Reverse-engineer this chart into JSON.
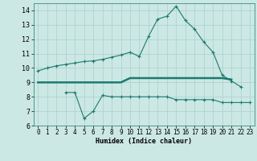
{
  "xlabel": "Humidex (Indice chaleur)",
  "x": [
    0,
    1,
    2,
    3,
    4,
    5,
    6,
    7,
    8,
    9,
    10,
    11,
    12,
    13,
    14,
    15,
    16,
    17,
    18,
    19,
    20,
    21,
    22,
    23
  ],
  "line1": [
    9.8,
    10.0,
    10.15,
    10.25,
    10.35,
    10.45,
    10.5,
    10.6,
    10.75,
    10.9,
    11.1,
    10.8,
    12.2,
    13.4,
    13.6,
    14.3,
    13.3,
    12.7,
    11.8,
    11.1,
    9.5,
    9.1,
    8.7,
    null
  ],
  "line2": [
    9.0,
    9.0,
    9.0,
    9.0,
    9.0,
    9.0,
    9.0,
    9.0,
    9.0,
    9.0,
    9.3,
    9.3,
    9.3,
    9.3,
    9.3,
    9.3,
    9.3,
    9.3,
    9.3,
    9.3,
    9.3,
    9.2,
    null,
    null
  ],
  "line3": [
    null,
    null,
    null,
    8.3,
    8.3,
    6.5,
    7.0,
    8.1,
    8.0,
    8.0,
    8.0,
    8.0,
    8.0,
    8.0,
    8.0,
    7.8,
    7.8,
    7.8,
    7.8,
    7.8,
    7.6,
    7.6,
    7.6,
    7.6
  ],
  "ylim": [
    6,
    14.5
  ],
  "xlim": [
    -0.5,
    23.5
  ],
  "yticks": [
    6,
    7,
    8,
    9,
    10,
    11,
    12,
    13,
    14
  ],
  "xticks": [
    0,
    1,
    2,
    3,
    4,
    5,
    6,
    7,
    8,
    9,
    10,
    11,
    12,
    13,
    14,
    15,
    16,
    17,
    18,
    19,
    20,
    21,
    22,
    23
  ],
  "line_color": "#1a7a6e",
  "bg_color": "#cce8e4",
  "grid_color": "#aacfca"
}
